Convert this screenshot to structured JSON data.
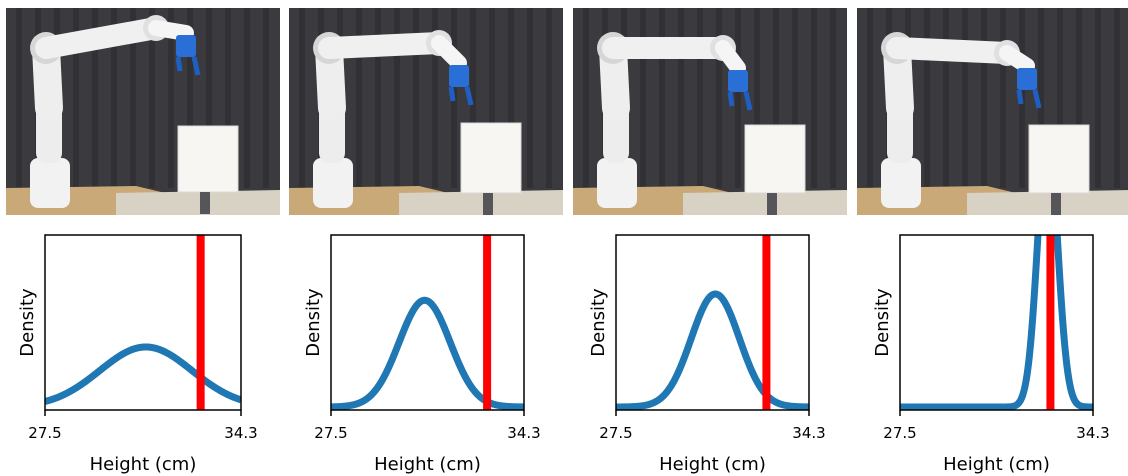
{
  "colors": {
    "curve": "#1f77b4",
    "marker": "#ff0000",
    "axes": "#000000"
  },
  "photos": [
    {
      "name": "robot-arm-frame-1"
    },
    {
      "name": "robot-arm-frame-2"
    },
    {
      "name": "robot-arm-frame-3"
    },
    {
      "name": "robot-arm-frame-4"
    }
  ],
  "chart_data": [
    {
      "type": "line",
      "xlabel": "Height (cm)",
      "ylabel": "Density",
      "xlim": [
        27.5,
        34.3
      ],
      "xticks": [
        "27.5",
        "34.3"
      ],
      "yticks_shown": false,
      "series": [
        {
          "distribution": "gaussian",
          "mean": 31.0,
          "std": 1.6
        }
      ],
      "marker_x": 32.9
    },
    {
      "type": "line",
      "xlabel": "Height (cm)",
      "ylabel": "Density",
      "xlim": [
        27.5,
        34.3
      ],
      "xticks": [
        "27.5",
        "34.3"
      ],
      "yticks_shown": false,
      "series": [
        {
          "distribution": "gaussian",
          "mean": 30.8,
          "std": 0.9
        }
      ],
      "marker_x": 33.0
    },
    {
      "type": "line",
      "xlabel": "Height (cm)",
      "ylabel": "Density",
      "xlim": [
        27.5,
        34.3
      ],
      "xticks": [
        "27.5",
        "34.3"
      ],
      "yticks_shown": false,
      "series": [
        {
          "distribution": "gaussian",
          "mean": 31.0,
          "std": 0.85
        }
      ],
      "marker_x": 32.8
    },
    {
      "type": "line",
      "xlabel": "Height (cm)",
      "ylabel": "Density",
      "xlim": [
        27.5,
        34.3
      ],
      "xticks": [
        "27.5",
        "34.3"
      ],
      "yticks_shown": false,
      "series": [
        {
          "distribution": "gaussian",
          "mean": 32.7,
          "std": 0.35
        }
      ],
      "marker_x": 32.8
    }
  ]
}
